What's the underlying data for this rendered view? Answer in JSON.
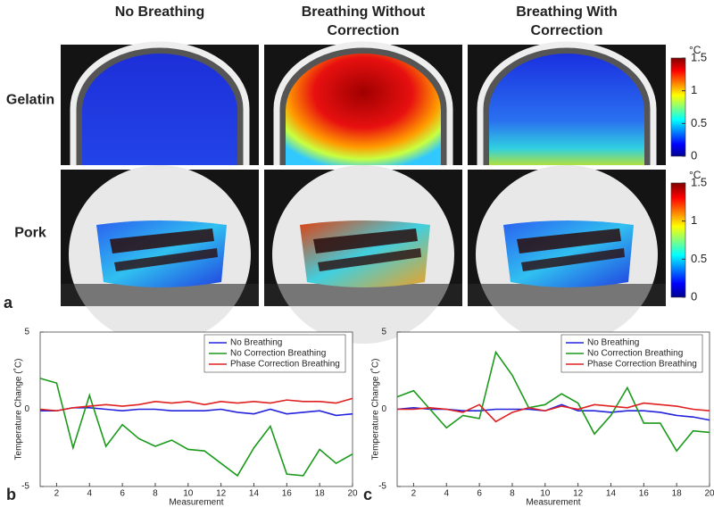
{
  "figure": {
    "label": "a",
    "column_titles": [
      [
        "No Breathing"
      ],
      [
        "Breathing Without",
        "Correction"
      ],
      [
        "Breathing With",
        "Correction"
      ]
    ],
    "row_labels": [
      "Gelatin",
      "Pork"
    ],
    "colorbar": {
      "unit": "°C",
      "lim": [
        0,
        1.5
      ],
      "ticks": [
        0,
        0.5,
        1,
        1.5
      ]
    }
  },
  "chart_data": [
    {
      "type": "line",
      "panel_label": "b",
      "xlabel": "Measurement",
      "ylabel": "Temperature Change (˚C)",
      "x": [
        1,
        2,
        3,
        4,
        5,
        6,
        7,
        8,
        9,
        10,
        11,
        12,
        13,
        14,
        15,
        16,
        17,
        18,
        19,
        20
      ],
      "xlim": [
        1,
        20
      ],
      "xticks": [
        2,
        4,
        6,
        8,
        10,
        12,
        14,
        16,
        18,
        20
      ],
      "ylim": [
        -5,
        5
      ],
      "yticks": [
        -5,
        0,
        5
      ],
      "legend": "upper right",
      "series": [
        {
          "name": "No Breathing",
          "color": "#2222dd",
          "values": [
            -0.1,
            -0.1,
            0.1,
            0.1,
            0,
            -0.1,
            0,
            0,
            -0.1,
            -0.1,
            -0.1,
            0,
            -0.2,
            -0.3,
            0,
            -0.3,
            -0.2,
            -0.1,
            -0.4,
            -0.3
          ]
        },
        {
          "name": "No Correction Breathing",
          "color": "#1a9a1a",
          "values": [
            2.0,
            1.7,
            -2.5,
            0.9,
            -2.4,
            -1.0,
            -1.9,
            -2.4,
            -2.0,
            -2.6,
            -2.7,
            -3.5,
            -4.3,
            -2.5,
            -1.1,
            -4.2,
            -4.3,
            -2.6,
            -3.5,
            -2.9
          ]
        },
        {
          "name": "Phase Correction Breathing",
          "color": "#e02020",
          "values": [
            0,
            -0.1,
            0.1,
            0.2,
            0.3,
            0.2,
            0.3,
            0.5,
            0.4,
            0.5,
            0.3,
            0.5,
            0.4,
            0.5,
            0.4,
            0.6,
            0.5,
            0.5,
            0.4,
            0.7
          ]
        }
      ]
    },
    {
      "type": "line",
      "panel_label": "c",
      "xlabel": "Measurement",
      "ylabel": "Temperature Change (˚C)",
      "x": [
        1,
        2,
        3,
        4,
        5,
        6,
        7,
        8,
        9,
        10,
        11,
        12,
        13,
        14,
        15,
        16,
        17,
        18,
        19,
        20
      ],
      "xlim": [
        1,
        20
      ],
      "xticks": [
        2,
        4,
        6,
        8,
        10,
        12,
        14,
        16,
        18,
        20
      ],
      "ylim": [
        -5,
        5
      ],
      "yticks": [
        -5,
        0,
        5
      ],
      "legend": "upper right",
      "series": [
        {
          "name": "No Breathing",
          "color": "#2222dd",
          "values": [
            0,
            0.1,
            0,
            0,
            -0.1,
            -0.1,
            0,
            0,
            0,
            -0.1,
            0.3,
            -0.1,
            -0.1,
            -0.2,
            -0.1,
            -0.1,
            -0.2,
            -0.4,
            -0.5,
            -0.7
          ]
        },
        {
          "name": "No Correction Breathing",
          "color": "#1a9a1a",
          "values": [
            0.8,
            1.2,
            0,
            -1.2,
            -0.4,
            -0.6,
            3.7,
            2.2,
            0.1,
            0.3,
            1.0,
            0.4,
            -1.6,
            -0.4,
            1.4,
            -0.9,
            -0.9,
            -2.7,
            -1.4,
            -1.5
          ]
        },
        {
          "name": "Phase Correction Breathing",
          "color": "#e02020",
          "values": [
            0,
            0,
            0.1,
            0,
            -0.2,
            0.3,
            -0.8,
            -0.2,
            0.1,
            -0.1,
            0.2,
            0,
            0.3,
            0.2,
            0.1,
            0.4,
            0.3,
            0.2,
            0,
            -0.1
          ]
        }
      ]
    }
  ]
}
